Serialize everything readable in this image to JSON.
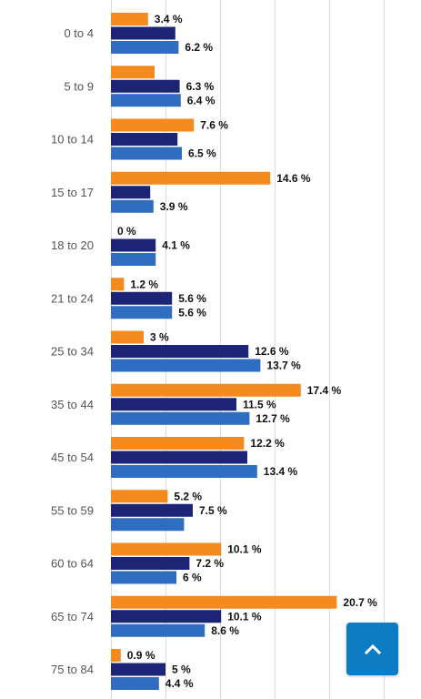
{
  "colors": {
    "series_a": "#F58A1F",
    "series_b": "#1B2475",
    "series_c": "#2E6DC0",
    "scroll_button": "#0C7CC5"
  },
  "scroll_top_button": {
    "icon": "chevron-up-icon"
  },
  "chart_data": {
    "type": "bar",
    "orientation": "horizontal",
    "categories": [
      "0 to 4",
      "5 to 9",
      "10 to 14",
      "15 to 17",
      "18 to 20",
      "21 to 24",
      "25 to 34",
      "35 to 44",
      "45 to 54",
      "55 to 59",
      "60 to 64",
      "65 to 74",
      "75 to 84"
    ],
    "series": [
      {
        "values": [
          3.4,
          4.0,
          7.6,
          14.6,
          0,
          1.2,
          3,
          17.4,
          12.2,
          5.2,
          10.1,
          20.7,
          0.9
        ],
        "labels": [
          "3.4 %",
          "",
          "7.6 %",
          "14.6 %",
          "0 %",
          "1.2 %",
          "3 %",
          "17.4 %",
          "12.2 %",
          "5.2 %",
          "10.1 %",
          "20.7 %",
          "0.9 %"
        ]
      },
      {
        "values": [
          5.9,
          6.3,
          6.1,
          3.6,
          4.1,
          5.6,
          12.6,
          11.5,
          12.5,
          7.5,
          7.2,
          10.1,
          5
        ],
        "labels": [
          "",
          "6.3 %",
          "",
          "",
          "4.1 %",
          "5.6 %",
          "12.6 %",
          "11.5 %",
          "",
          "7.5 %",
          "7.2 %",
          "10.1 %",
          "5 %"
        ]
      },
      {
        "values": [
          6.2,
          6.4,
          6.5,
          3.9,
          4.1,
          5.6,
          13.7,
          12.7,
          13.4,
          6.7,
          6,
          8.6,
          4.4
        ],
        "labels": [
          "6.2 %",
          "6.4 %",
          "6.5 %",
          "3.9 %",
          "",
          "5.6 %",
          "13.7 %",
          "12.7 %",
          "13.4 %",
          "",
          "6 %",
          "8.6 %",
          "4.4 %"
        ]
      }
    ],
    "xlim": [
      0,
      26
    ],
    "grid": true,
    "legend": "none"
  }
}
